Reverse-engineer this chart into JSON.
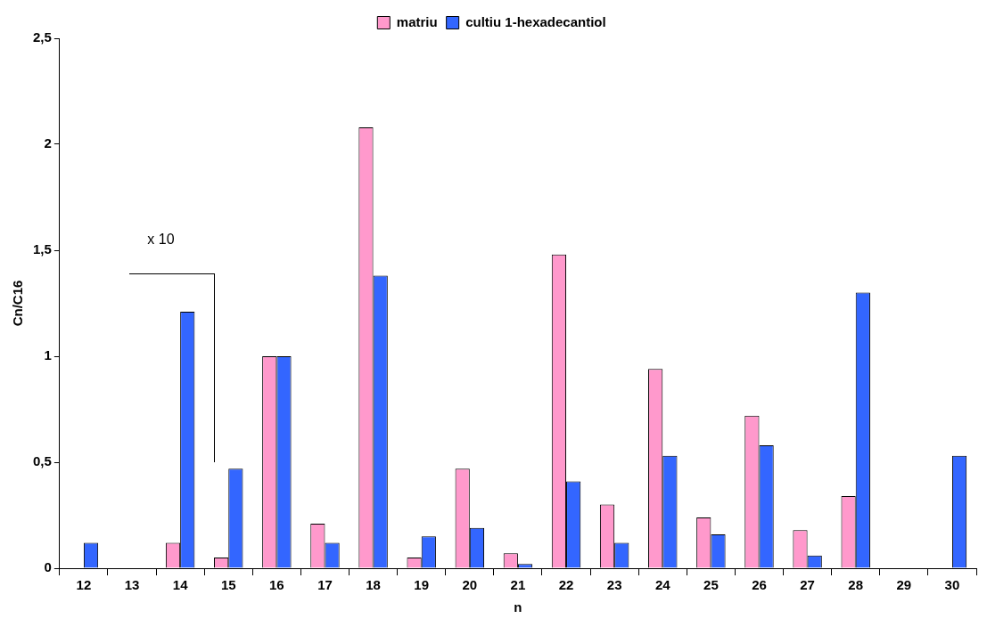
{
  "chart_data": {
    "type": "bar",
    "xlabel": "n",
    "ylabel": "Cn/C16",
    "categories": [
      "12",
      "13",
      "14",
      "15",
      "16",
      "17",
      "18",
      "19",
      "20",
      "21",
      "22",
      "23",
      "24",
      "25",
      "26",
      "27",
      "28",
      "29",
      "30"
    ],
    "series": [
      {
        "name": "matriu",
        "color": "#ff99cc",
        "values": [
          null,
          null,
          0.12,
          0.05,
          1.0,
          0.21,
          2.08,
          0.05,
          0.47,
          0.07,
          1.48,
          0.3,
          0.94,
          0.24,
          0.72,
          0.18,
          0.34,
          null,
          null
        ]
      },
      {
        "name": "cultiu 1-hexadecantiol",
        "color": "#3366ff",
        "values": [
          0.12,
          null,
          1.21,
          0.47,
          1.0,
          0.12,
          1.38,
          0.15,
          0.19,
          0.02,
          0.41,
          0.12,
          0.53,
          0.16,
          0.58,
          0.06,
          1.3,
          null,
          0.53
        ]
      }
    ],
    "ylim": [
      0,
      2.5
    ],
    "yticks": [
      0,
      {
        "value": 0.5,
        "label": "0,5"
      },
      1,
      {
        "value": 1.5,
        "label": "1,5"
      },
      2,
      {
        "value": 2.5,
        "label": "2,5"
      }
    ],
    "annotations": [
      "x 10"
    ],
    "grid": false,
    "legend": "top"
  }
}
